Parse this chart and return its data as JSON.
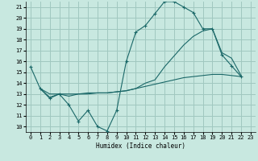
{
  "title": "",
  "xlabel": "Humidex (Indice chaleur)",
  "bg_color": "#c8e8e0",
  "grid_color": "#a0c8c0",
  "line_color": "#1a6868",
  "xlim": [
    -0.5,
    23.5
  ],
  "ylim": [
    9.5,
    21.5
  ],
  "yticks": [
    10,
    11,
    12,
    13,
    14,
    15,
    16,
    17,
    18,
    19,
    20,
    21
  ],
  "xticks": [
    0,
    1,
    2,
    3,
    4,
    5,
    6,
    7,
    8,
    9,
    10,
    11,
    12,
    13,
    14,
    15,
    16,
    17,
    18,
    19,
    20,
    21,
    22,
    23
  ],
  "line1_x": [
    0,
    1,
    2,
    3,
    4,
    5,
    6,
    7,
    8,
    9,
    10,
    11,
    12,
    13,
    14,
    15,
    16,
    17,
    18,
    19,
    20,
    21,
    22
  ],
  "line1_y": [
    15.5,
    13.5,
    12.6,
    13.0,
    12.0,
    10.5,
    11.5,
    10.0,
    9.6,
    11.5,
    16.0,
    18.7,
    19.3,
    20.4,
    21.5,
    21.5,
    21.0,
    20.5,
    19.0,
    19.0,
    16.6,
    15.6,
    14.6
  ],
  "line2_x": [
    1,
    2,
    3,
    4,
    5,
    6,
    7,
    8,
    9,
    10,
    11,
    12,
    13,
    14,
    15,
    16,
    17,
    18,
    19,
    20,
    21,
    22
  ],
  "line2_y": [
    13.5,
    12.7,
    13.0,
    12.8,
    13.0,
    13.0,
    13.1,
    13.1,
    13.2,
    13.3,
    13.5,
    14.0,
    14.3,
    15.5,
    16.5,
    17.5,
    18.3,
    18.8,
    19.0,
    16.8,
    16.3,
    14.7
  ],
  "line3_x": [
    1,
    2,
    3,
    4,
    5,
    6,
    7,
    8,
    9,
    10,
    11,
    12,
    13,
    14,
    15,
    16,
    17,
    18,
    19,
    20,
    21,
    22
  ],
  "line3_y": [
    13.5,
    13.0,
    13.0,
    13.0,
    13.0,
    13.1,
    13.1,
    13.1,
    13.2,
    13.3,
    13.5,
    13.7,
    13.9,
    14.1,
    14.3,
    14.5,
    14.6,
    14.7,
    14.8,
    14.8,
    14.7,
    14.6
  ]
}
